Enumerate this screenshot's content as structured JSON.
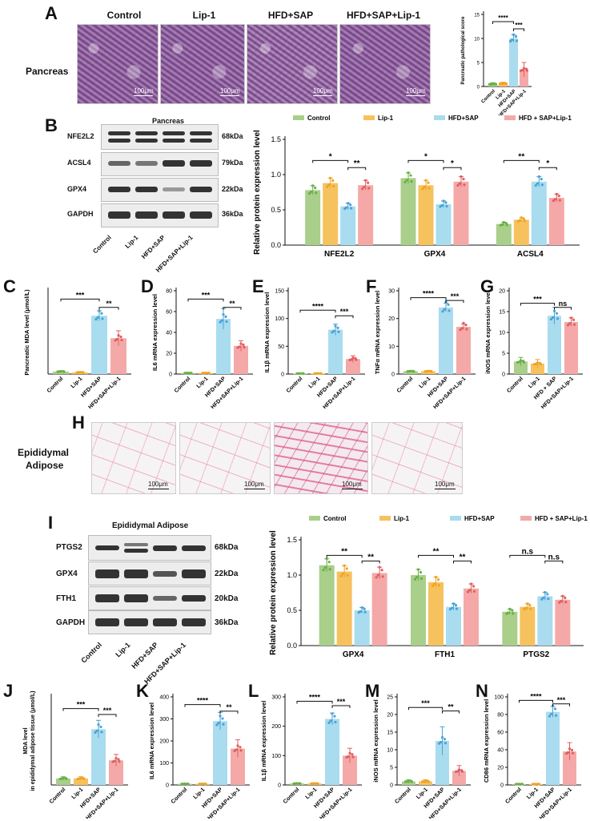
{
  "colors": {
    "Control": "#a9cf8b",
    "Lip-1": "#f6c25e",
    "HFD+SAP": "#a9dcef",
    "HFD+SAP+Lip-1": "#f4a9a8"
  },
  "dot_colors": {
    "Control": "#69b046",
    "Lip-1": "#f0a323",
    "HFD+SAP": "#4aa3d6",
    "HFD+SAP+Lip-1": "#e0605f"
  },
  "panel_letters": [
    "A",
    "B",
    "C",
    "D",
    "E",
    "F",
    "G",
    "H",
    "I",
    "J",
    "K",
    "L",
    "M",
    "N"
  ],
  "panelA": {
    "headers": [
      "Control",
      "Lip-1",
      "HFD+SAP",
      "HFD+SAP+Lip-1"
    ],
    "tissue_label": "Pancreas",
    "scale": "100μm"
  },
  "panelB": {
    "title": "Pancreas",
    "rows": [
      "NFE2L2",
      "ACSL4",
      "GPX4",
      "GAPDH"
    ],
    "kda": [
      "68kDa",
      "79kDa",
      "22kDa",
      "36kDa"
    ],
    "lanes": [
      "Control",
      "Lip-1",
      "HFD+SAP",
      "HFD+SAP+Lip-1"
    ]
  },
  "panelH": {
    "tissue_label_1": "Epididymal",
    "tissue_label_2": "Adipose",
    "scale": "100μm"
  },
  "panelI": {
    "title": "Epididymal Adipose",
    "rows": [
      "PTGS2",
      "GPX4",
      "FTH1",
      "GAPDH"
    ],
    "kda": [
      "68kDa",
      "22kDa",
      "20kDa",
      "36kDa"
    ],
    "lanes": [
      "Control",
      "Lip-1",
      "HFD+SAP",
      "HFD+SAP+Lip-1"
    ]
  },
  "chart_data": [
    {
      "id": "A",
      "type": "bar",
      "ylabel": "Pancreatic pathological score",
      "categories": [
        "Control",
        "Lip-1",
        "HFD+SAP",
        "HFD+SAP+Lip-1"
      ],
      "values": [
        0.5,
        0.6,
        10,
        3.5
      ],
      "errors": [
        0.3,
        0.3,
        0.8,
        1.5
      ],
      "ylim": [
        0,
        15
      ],
      "yticks": [
        0,
        5,
        10,
        15
      ],
      "sig": [
        {
          "a": 0,
          "b": 2,
          "label": "****",
          "level": 13.5
        },
        {
          "a": 2,
          "b": 3,
          "label": "***",
          "level": 12
        }
      ]
    },
    {
      "id": "B",
      "type": "bar",
      "ylabel": "Relative protein expression level",
      "groups": [
        "NFE2L2",
        "GPX4",
        "ACSL4"
      ],
      "legend": [
        "Control",
        "Lip-1",
        "HFD+SAP",
        "HFD + SAP+Lip-1"
      ],
      "series": [
        {
          "name": "Control",
          "values": [
            0.78,
            0.95,
            0.3
          ]
        },
        {
          "name": "Lip-1",
          "values": [
            0.88,
            0.85,
            0.36
          ]
        },
        {
          "name": "HFD+SAP",
          "values": [
            0.55,
            0.58,
            0.9
          ]
        },
        {
          "name": "HFD + SAP+Lip-1",
          "values": [
            0.85,
            0.9,
            0.67
          ]
        }
      ],
      "ylim": [
        0,
        1.5
      ],
      "yticks": [
        "0.0",
        "0.5",
        "1.0",
        "1.5"
      ],
      "sig": [
        {
          "g": 0,
          "a": 0,
          "b": 2,
          "label": "*",
          "level": 1.2
        },
        {
          "g": 0,
          "a": 2,
          "b": 3,
          "label": "**",
          "level": 1.1
        },
        {
          "g": 1,
          "a": 0,
          "b": 2,
          "label": "*",
          "level": 1.2
        },
        {
          "g": 1,
          "a": 2,
          "b": 3,
          "label": "*",
          "level": 1.1
        },
        {
          "g": 2,
          "a": 0,
          "b": 2,
          "label": "**",
          "level": 1.2
        },
        {
          "g": 2,
          "a": 2,
          "b": 3,
          "label": "*",
          "level": 1.1
        }
      ]
    },
    {
      "id": "C",
      "type": "bar",
      "ylabel": "Pancreatic MDA level (μmol/L)",
      "categories": [
        "Control",
        "Lip-1",
        "HFD+SAP",
        "HFD+SAP+Lip-1"
      ],
      "values": [
        0.3,
        0.2,
        7,
        4.3
      ],
      "errors": [
        0.1,
        0.1,
        0.6,
        0.9
      ],
      "ylim": [
        0,
        10
      ],
      "yticks": [],
      "sig": [
        {
          "a": 0,
          "b": 2,
          "label": "***",
          "level": 9
        },
        {
          "a": 2,
          "b": 3,
          "label": "**",
          "level": 8
        }
      ]
    },
    {
      "id": "D",
      "type": "bar",
      "ylabel": "IL6 mRNA expression level",
      "categories": [
        "Control",
        "Lip-1",
        "HFD+SAP",
        "HFD+SAP+Lip-1"
      ],
      "values": [
        1,
        1,
        53,
        27
      ],
      "errors": [
        0.5,
        0.5,
        10,
        5
      ],
      "ylim": [
        0,
        80
      ],
      "yticks": [
        0,
        20,
        40,
        60,
        80
      ],
      "sig": [
        {
          "a": 0,
          "b": 2,
          "label": "***",
          "level": 72
        },
        {
          "a": 2,
          "b": 3,
          "label": "**",
          "level": 64
        }
      ]
    },
    {
      "id": "E",
      "type": "bar",
      "ylabel": "IL1β mRNA expression level",
      "categories": [
        "Control",
        "Lip-1",
        "HFD+SAP",
        "HFD+SAP+Lip-1"
      ],
      "values": [
        1,
        1,
        80,
        27
      ],
      "errors": [
        0.5,
        0.5,
        10,
        6
      ],
      "ylim": [
        0,
        150
      ],
      "yticks": [
        0,
        50,
        100,
        150
      ],
      "sig": [
        {
          "a": 0,
          "b": 2,
          "label": "****",
          "level": 115
        },
        {
          "a": 2,
          "b": 3,
          "label": "***",
          "level": 105
        }
      ]
    },
    {
      "id": "F",
      "type": "bar",
      "ylabel": "TNFα mRNA expression level",
      "categories": [
        "Control",
        "Lip-1",
        "HFD+SAP",
        "HFD+SAP+Lip-1"
      ],
      "values": [
        1,
        1,
        24,
        17
      ],
      "errors": [
        0.3,
        0.3,
        1.5,
        1
      ],
      "ylim": [
        0,
        30
      ],
      "yticks": [
        0,
        10,
        20,
        30
      ],
      "sig": [
        {
          "a": 0,
          "b": 2,
          "label": "****",
          "level": 27.5
        },
        {
          "a": 2,
          "b": 3,
          "label": "***",
          "level": 26.5
        }
      ]
    },
    {
      "id": "G",
      "type": "bar",
      "ylabel": "iNOS mRNA expression level",
      "categories": [
        "Control",
        "Lip-1",
        "HFD + SAP",
        "HFD+SAP+Lip-1"
      ],
      "values": [
        3,
        2.5,
        14,
        12.5
      ],
      "errors": [
        1,
        1,
        2,
        1
      ],
      "ylim": [
        0,
        20
      ],
      "yticks": [
        0,
        5,
        10,
        15,
        20
      ],
      "sig": [
        {
          "a": 0,
          "b": 2,
          "label": "***",
          "level": 17
        },
        {
          "a": 2,
          "b": 3,
          "label": "ns",
          "level": 16
        }
      ]
    },
    {
      "id": "I",
      "type": "bar",
      "ylabel": "Relative protein expression level",
      "groups": [
        "GPX4",
        "FTH1",
        "PTGS2"
      ],
      "legend": [
        "Control",
        "Lip-1",
        "HFD+SAP",
        "HFD + SAP+Lip-1"
      ],
      "series": [
        {
          "name": "Control",
          "values": [
            1.14,
            1.0,
            0.48
          ]
        },
        {
          "name": "Lip-1",
          "values": [
            1.05,
            0.9,
            0.55
          ]
        },
        {
          "name": "HFD+SAP",
          "values": [
            0.5,
            0.55,
            0.7
          ]
        },
        {
          "name": "HFD + SAP+Lip-1",
          "values": [
            1.03,
            0.81,
            0.65
          ]
        }
      ],
      "ylim": [
        0,
        1.5
      ],
      "yticks": [
        "0.0",
        "0.5",
        "1.0",
        "1.5"
      ],
      "sig": [
        {
          "g": 0,
          "a": 0,
          "b": 2,
          "label": "**",
          "level": 1.28
        },
        {
          "g": 0,
          "a": 2,
          "b": 3,
          "label": "**",
          "level": 1.2
        },
        {
          "g": 1,
          "a": 0,
          "b": 2,
          "label": "**",
          "level": 1.28
        },
        {
          "g": 1,
          "a": 2,
          "b": 3,
          "label": "**",
          "level": 1.2
        },
        {
          "g": 2,
          "a": 0,
          "b": 2,
          "label": "n.s",
          "level": 1.28
        },
        {
          "g": 2,
          "a": 2,
          "b": 3,
          "label": "n.s",
          "level": 1.2
        }
      ]
    },
    {
      "id": "J",
      "type": "bar",
      "ylabel": "MDA level",
      "ylabel2": "in epididymal adipose tissue (μmol/L)",
      "categories": [
        "Control",
        "Lip-1",
        "HFD+SAP",
        "HFD+SAP+Lip-1"
      ],
      "values": [
        1.1,
        1.1,
        9.5,
        4.2
      ],
      "errors": [
        0.3,
        0.3,
        1.5,
        1
      ],
      "ylim": [
        0,
        15
      ],
      "yticks": [],
      "sig": [
        {
          "a": 0,
          "b": 2,
          "label": "***",
          "level": 13
        },
        {
          "a": 2,
          "b": 3,
          "label": "***",
          "level": 12
        }
      ]
    },
    {
      "id": "K",
      "type": "bar",
      "ylabel": "IL6 mRNA expression level",
      "categories": [
        "Control",
        "Lip-1",
        "HFD+SAP",
        "HFD+SAP+Lip-1"
      ],
      "values": [
        5,
        5,
        290,
        165
      ],
      "errors": [
        2,
        2,
        40,
        40
      ],
      "ylim": [
        0,
        400
      ],
      "yticks": [
        0,
        100,
        200,
        300,
        400
      ],
      "sig": [
        {
          "a": 0,
          "b": 2,
          "label": "****",
          "level": 365
        },
        {
          "a": 2,
          "b": 3,
          "label": "**",
          "level": 335
        }
      ]
    },
    {
      "id": "L",
      "type": "bar",
      "ylabel": "IL1β mRNA expression level",
      "categories": [
        "Control",
        "Lip-1",
        "HFD+SAP",
        "HFD+SAP+Lip-1"
      ],
      "values": [
        5,
        5,
        225,
        100
      ],
      "errors": [
        2,
        2,
        20,
        25
      ],
      "ylim": [
        0,
        300
      ],
      "yticks": [
        0,
        100,
        200,
        300
      ],
      "sig": [
        {
          "a": 0,
          "b": 2,
          "label": "****",
          "level": 285
        },
        {
          "a": 2,
          "b": 3,
          "label": "***",
          "level": 270
        }
      ]
    },
    {
      "id": "M",
      "type": "bar",
      "ylabel": "iNOS mRNA expression level",
      "categories": [
        "Control",
        "Lip-1",
        "HFD+SAP",
        "HFD+SAP+Lip-1"
      ],
      "values": [
        1,
        1,
        12.5,
        4
      ],
      "errors": [
        0.5,
        0.5,
        4,
        1.5
      ],
      "ylim": [
        0,
        25
      ],
      "yticks": [
        0,
        5,
        10,
        15,
        20,
        25
      ],
      "sig": [
        {
          "a": 0,
          "b": 2,
          "label": "***",
          "level": 22
        },
        {
          "a": 2,
          "b": 3,
          "label": "**",
          "level": 21
        }
      ]
    },
    {
      "id": "N",
      "type": "bar",
      "ylabel": "CD86 mRNA expression level",
      "categories": [
        "Control",
        "Lip-1",
        "HFD+SAP",
        "HFD+SAP+Lip-1"
      ],
      "values": [
        1,
        1,
        83,
        38
      ],
      "errors": [
        0.5,
        0.5,
        6,
        10
      ],
      "ylim": [
        0,
        100
      ],
      "yticks": [
        0,
        20,
        40,
        60,
        80,
        100
      ],
      "sig": [
        {
          "a": 0,
          "b": 2,
          "label": "****",
          "level": 96
        },
        {
          "a": 2,
          "b": 3,
          "label": "***",
          "level": 92
        }
      ]
    }
  ]
}
